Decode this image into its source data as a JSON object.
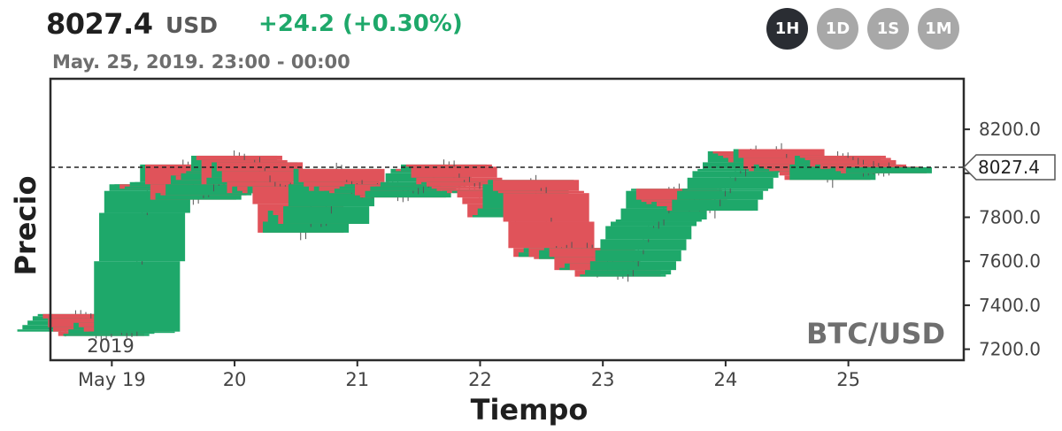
{
  "header": {
    "price": "8027.4",
    "currency": "USD",
    "change": "+24.2 (+0.30%)",
    "date_range": "May. 25, 2019. 23:00 - 00:00"
  },
  "intervals": [
    {
      "label": "1H",
      "active": true
    },
    {
      "label": "1D",
      "active": false
    },
    {
      "label": "1S",
      "active": false
    },
    {
      "label": "1M",
      "active": false
    }
  ],
  "colors": {
    "up": "#1ea86a",
    "down": "#e0535a",
    "frame": "#2b2b2b"
  },
  "chart_data": {
    "type": "candlestick",
    "symbol": "BTC/USD",
    "xlabel": "Tiempo",
    "ylabel": "Precio",
    "year_label": "2019",
    "ylim": [
      7150,
      8430
    ],
    "y_ticks": [
      7200.0,
      7400.0,
      7600.0,
      7800.0,
      8000.0,
      8200.0
    ],
    "y_tick_labels": [
      "7200.0",
      "7400.0",
      "7600.0",
      "7800.0",
      "8000.0",
      "8200.0"
    ],
    "x_ticks": [
      {
        "label": "May 19",
        "t": 19
      },
      {
        "label": "20",
        "t": 20
      },
      {
        "label": "21",
        "t": 21
      },
      {
        "label": "22",
        "t": 22
      },
      {
        "label": "23",
        "t": 23
      },
      {
        "label": "24",
        "t": 24
      },
      {
        "label": "25",
        "t": 25
      }
    ],
    "last_price": 8027.4,
    "last_price_label": "8027.4",
    "closes": [
      7290,
      7310,
      7330,
      7350,
      7360,
      7340,
      7300,
      7280,
      7260,
      7270,
      7290,
      7320,
      7300,
      7280,
      7280,
      7600,
      7820,
      7920,
      7950,
      7950,
      7930,
      7940,
      7960,
      7960,
      8040,
      7950,
      7880,
      7910,
      7900,
      7950,
      7990,
      7970,
      8000,
      8010,
      8080,
      8060,
      7950,
      7980,
      8050,
      8010,
      7960,
      7910,
      7940,
      7920,
      7910,
      7940,
      7860,
      7730,
      7780,
      7830,
      7810,
      7770,
      7850,
      7950,
      8020,
      7960,
      7940,
      7920,
      7940,
      7920,
      7920,
      7910,
      7930,
      7940,
      7950,
      7950,
      7900,
      7890,
      7920,
      7940,
      7940,
      7960,
      8000,
      8020,
      8010,
      8040,
      8030,
      7980,
      7950,
      7960,
      7940,
      7930,
      7920,
      7920,
      7910,
      7920,
      7890,
      7860,
      7800,
      7810,
      7840,
      7950,
      7970,
      7920,
      7910,
      7780,
      7660,
      7620,
      7640,
      7660,
      7620,
      7610,
      7650,
      7660,
      7620,
      7560,
      7570,
      7590,
      7560,
      7530,
      7540,
      7560,
      7600,
      7650,
      7700,
      7760,
      7780,
      7790,
      7840,
      7920,
      7930,
      7880,
      7870,
      7860,
      7870,
      7850,
      7850,
      7830,
      7880,
      7920,
      7930,
      7980,
      8010,
      8020,
      8050,
      8100,
      8090,
      8080,
      8070,
      8050,
      8110,
      8070,
      8020,
      8010,
      8040,
      8030,
      8020,
      8010,
      8010,
      7990,
      7970,
      8040,
      8080,
      8070,
      8060,
      8030,
      8040,
      8020,
      8020,
      8030,
      8010,
      8000,
      8027.4
    ],
    "open_price": 7280,
    "start_time": 18.58,
    "step_hours": 1
  }
}
